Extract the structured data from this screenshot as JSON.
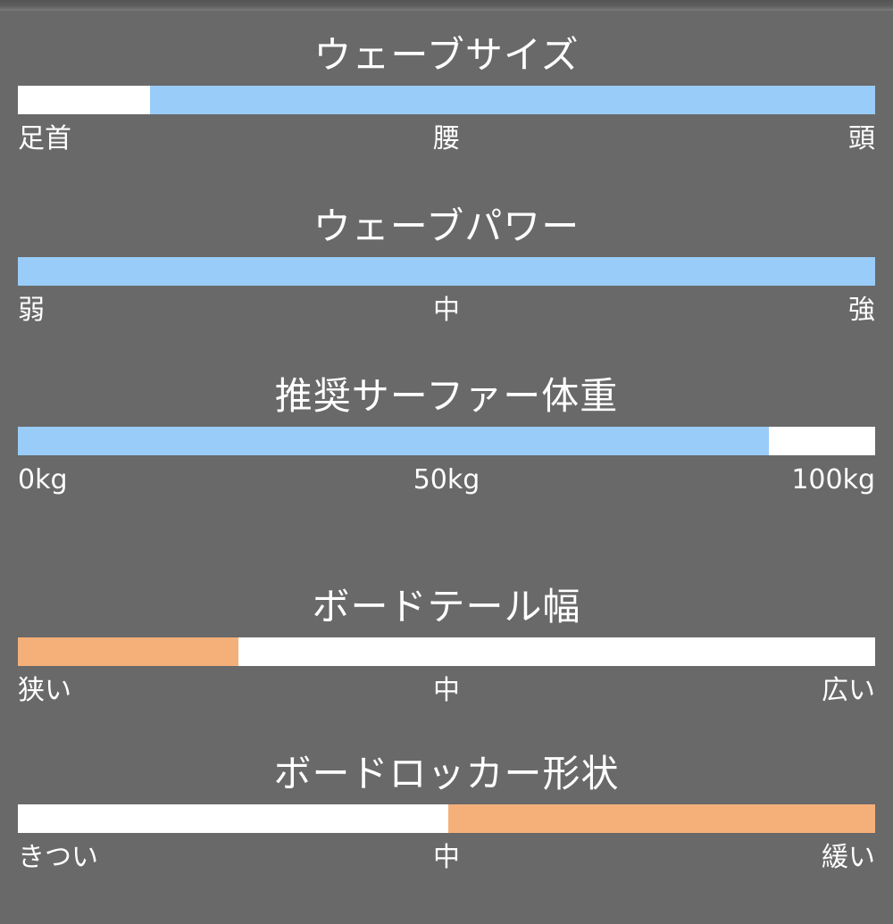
{
  "page": {
    "background_color": "#696969",
    "accent_blue": "#99ccf9",
    "accent_orange": "#f5b07a",
    "text_color": "#ffffff"
  },
  "chart_data": [
    {
      "type": "bar",
      "orientation": "horizontal",
      "variant": "range-gauge",
      "title": "ウェーブサイズ",
      "axis_labels": [
        "足首",
        "腰",
        "頭"
      ],
      "segments": [
        {
          "color": "#ffffff",
          "percent": 15.4
        },
        {
          "color": "#99ccf9",
          "percent": 84.6
        }
      ]
    },
    {
      "type": "bar",
      "orientation": "horizontal",
      "variant": "range-gauge",
      "title": "ウェーブパワー",
      "axis_labels": [
        "弱",
        "中",
        "強"
      ],
      "segments": [
        {
          "color": "#99ccf9",
          "percent": 100
        }
      ]
    },
    {
      "type": "bar",
      "orientation": "horizontal",
      "variant": "range-gauge",
      "title": "推奨サーファー体重",
      "axis_labels": [
        "0kg",
        "50kg",
        "100kg"
      ],
      "segments": [
        {
          "color": "#99ccf9",
          "percent": 87.6
        },
        {
          "color": "#ffffff",
          "percent": 12.4
        }
      ]
    },
    {
      "type": "bar",
      "orientation": "horizontal",
      "variant": "range-gauge",
      "title": "ボードテール幅",
      "axis_labels": [
        "狭い",
        "中",
        "広い"
      ],
      "segments": [
        {
          "color": "#f5b07a",
          "percent": 25.7
        },
        {
          "color": "#ffffff",
          "percent": 74.3
        }
      ]
    },
    {
      "type": "bar",
      "orientation": "horizontal",
      "variant": "range-gauge",
      "title": "ボードロッカー形状",
      "axis_labels": [
        "きつい",
        "中",
        "緩い"
      ],
      "segments": [
        {
          "color": "#ffffff",
          "percent": 50.2
        },
        {
          "color": "#f5b07a",
          "percent": 49.8
        }
      ]
    }
  ]
}
